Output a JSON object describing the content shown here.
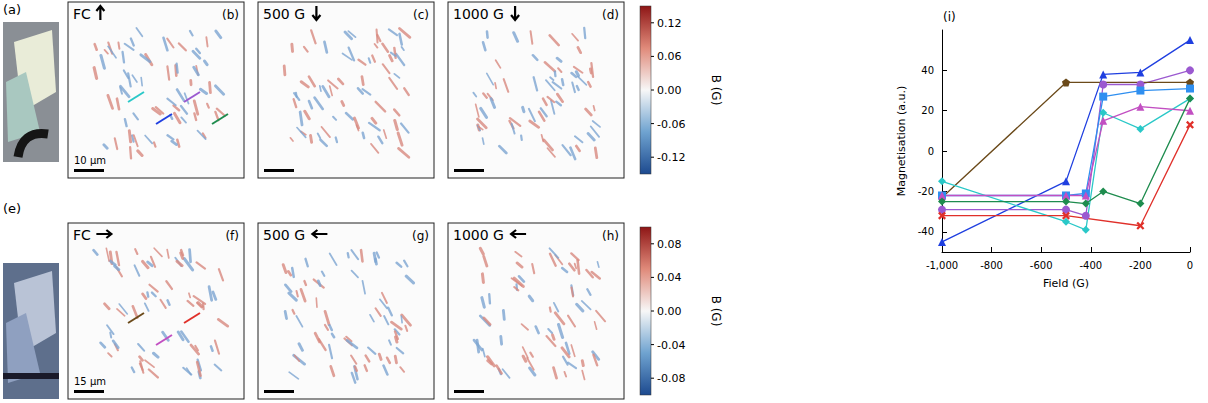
{
  "rows": [
    {
      "photo_label": "(a)",
      "maps": [
        {
          "label": "(b)",
          "condition": "FC",
          "field_direction": "up",
          "scale_bar": "10 μm",
          "line_colors": [
            "#2ac8c8",
            "#1f3fe0",
            "#9b59d0",
            "#1e8c4e"
          ]
        },
        {
          "label": "(c)",
          "condition": "500 G",
          "field_direction": "down"
        },
        {
          "label": "(d)",
          "condition": "1000 G",
          "field_direction": "down"
        }
      ],
      "colorbar": {
        "title": "B (G)",
        "range": [
          -0.15,
          0.15
        ],
        "ticks": [
          0.12,
          0.06,
          {
            "value": 0,
            "label": "0.00"
          },
          -0.06,
          -0.12
        ]
      }
    },
    {
      "photo_label": "(e)",
      "maps": [
        {
          "label": "(f)",
          "condition": "FC",
          "field_direction": "right",
          "scale_bar": "15 μm",
          "line_colors": [
            "#6b4a1a",
            "#c24fc2",
            "#e0302a"
          ]
        },
        {
          "label": "(g)",
          "condition": "500 G",
          "field_direction": "left"
        },
        {
          "label": "(h)",
          "condition": "1000 G",
          "field_direction": "left"
        }
      ],
      "colorbar": {
        "title": "B (G)",
        "range": [
          -0.1,
          0.1
        ],
        "ticks": [
          0.08,
          0.04,
          {
            "value": 0,
            "label": "0.00"
          },
          -0.04,
          -0.08
        ]
      }
    }
  ],
  "chart_data": {
    "type": "line",
    "title": "(i)",
    "x_label": "Field (G)",
    "y_label": "Magnetisation (a.u.)",
    "xlim": [
      -1000,
      0
    ],
    "xticks": [
      -1000,
      -800,
      -600,
      -400,
      -200,
      0
    ],
    "ylim": [
      -50,
      60
    ],
    "yticks": [
      -40,
      -20,
      0,
      20,
      40
    ],
    "series": [
      {
        "color": "#1f3fe0",
        "marker": "triangle",
        "x": [
          -1000,
          -500,
          -350,
          -200,
          0
        ],
        "values": [
          -45,
          -15,
          38,
          39,
          55
        ]
      },
      {
        "color": "#9b59d0",
        "marker": "circle",
        "x": [
          -1000,
          -500,
          -420,
          -350,
          -200,
          0
        ],
        "values": [
          -29,
          -29,
          -32,
          33,
          33,
          40
        ]
      },
      {
        "color": "#6b4a1a",
        "marker": "pentagon",
        "x": [
          -1000,
          -500,
          0
        ],
        "values": [
          -23,
          34,
          34
        ]
      },
      {
        "color": "#2f8ff0",
        "marker": "square",
        "x": [
          -1000,
          -500,
          -420,
          -350,
          -200,
          0
        ],
        "values": [
          -22,
          -22,
          -21,
          27,
          30,
          31
        ]
      },
      {
        "color": "#2ac8c8",
        "marker": "diamond",
        "x": [
          -1000,
          -500,
          -420,
          -350,
          -200,
          0
        ],
        "values": [
          -15,
          -35,
          -39,
          19,
          11,
          26
        ]
      },
      {
        "color": "#c24fc2",
        "marker": "triangle",
        "x": [
          -1000,
          -500,
          -420,
          -350,
          -200,
          0
        ],
        "values": [
          -22,
          -22,
          -22,
          15,
          22,
          20
        ]
      },
      {
        "color": "#1e8c4e",
        "marker": "diamond",
        "x": [
          -1000,
          -500,
          -420,
          -350,
          -200,
          0
        ],
        "values": [
          -25,
          -25,
          -26,
          -20,
          -26,
          26
        ]
      },
      {
        "color": "#e0302a",
        "marker": "cross",
        "x": [
          -1000,
          -500,
          -200,
          0
        ],
        "values": [
          -32,
          -32,
          -37,
          13
        ]
      }
    ]
  }
}
